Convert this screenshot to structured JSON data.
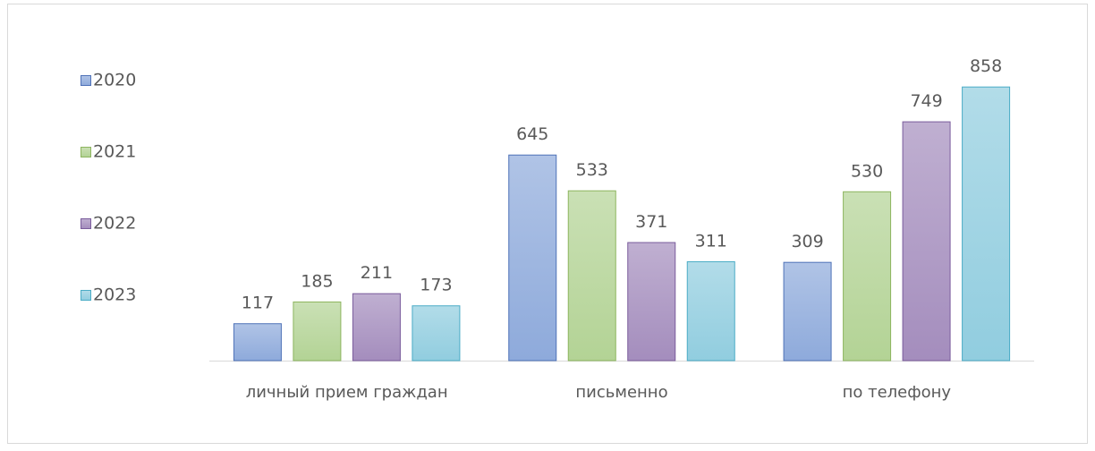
{
  "chart_data": {
    "type": "bar",
    "categories": [
      "личный прием граждан",
      "письменно",
      "по телефону"
    ],
    "series": [
      {
        "name": "2020",
        "color": "#8eaadb",
        "edge_color": "#4f72b8",
        "values": [
          117,
          645,
          309
        ]
      },
      {
        "name": "2021",
        "color": "#b3d395",
        "edge_color": "#8db55f",
        "values": [
          185,
          533,
          530
        ]
      },
      {
        "name": "2022",
        "color": "#a48dbd",
        "edge_color": "#7a5c9c",
        "values": [
          211,
          371,
          749
        ]
      },
      {
        "name": "2023",
        "color": "#91cddf",
        "edge_color": "#4bacc6",
        "values": [
          173,
          311,
          858
        ]
      }
    ],
    "ylim": [
      0,
      1000
    ],
    "legend": "left",
    "data_labels": true
  }
}
